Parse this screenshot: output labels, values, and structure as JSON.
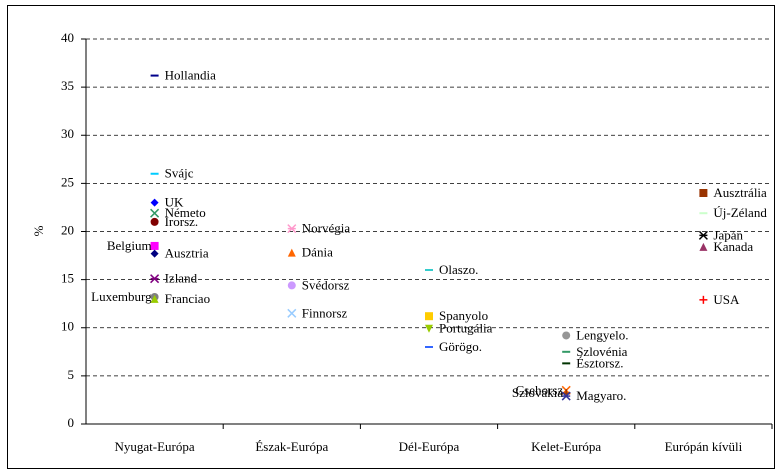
{
  "chart_data": {
    "type": "scatter",
    "y_label": "%",
    "xlim": [
      0.5,
      5.5
    ],
    "xticks": [
      {
        "value": 1,
        "label": "Nyugat-Európa"
      },
      {
        "value": 2,
        "label": "Észak-Európa"
      },
      {
        "value": 3,
        "label": "Dél-Európa"
      },
      {
        "value": 4,
        "label": "Kelet-Európa"
      },
      {
        "value": 5,
        "label": "Európán kívüli"
      }
    ],
    "ylim": [
      0,
      40
    ],
    "yticks": [
      0,
      5,
      10,
      15,
      20,
      25,
      30,
      35,
      40
    ],
    "grid": true,
    "series": [
      {
        "name": "Hollandia",
        "color": "#00008b",
        "marker": "dash",
        "x": [
          1
        ],
        "values": [
          36.2
        ]
      },
      {
        "name": "Svájc",
        "color": "#00ccff",
        "marker": "dash",
        "x": [
          1
        ],
        "values": [
          26.0
        ]
      },
      {
        "name": "UK",
        "color": "#0000ff",
        "marker": "diamond",
        "x": [
          1
        ],
        "values": [
          23.0
        ]
      },
      {
        "name": "Németo",
        "color": "#339966",
        "marker": "x",
        "x": [
          1
        ],
        "values": [
          21.9
        ]
      },
      {
        "name": "Irorsz.",
        "color": "#800000",
        "marker": "circle",
        "x": [
          1
        ],
        "values": [
          21.0
        ]
      },
      {
        "name": "Belgium",
        "color": "#ff00ff",
        "marker": "square",
        "x": [
          1
        ],
        "values": [
          18.5
        ]
      },
      {
        "name": "Ausztria",
        "color": "#000080",
        "marker": "diamond",
        "x": [
          1
        ],
        "values": [
          17.7
        ]
      },
      {
        "name": "Izland",
        "color": "#800080",
        "marker": "star",
        "x": [
          1
        ],
        "values": [
          15.1
        ]
      },
      {
        "name": "Luxemburg",
        "color": "#808080",
        "marker": "circle",
        "x": [
          1
        ],
        "values": [
          13.2
        ]
      },
      {
        "name": "Franciao",
        "color": "#99cc00",
        "marker": "triangle",
        "x": [
          1
        ],
        "values": [
          13.0
        ]
      },
      {
        "name": "Norvégia",
        "color": "#ff99cc",
        "marker": "star",
        "x": [
          2
        ],
        "values": [
          20.3
        ]
      },
      {
        "name": "Dánia",
        "color": "#ff6600",
        "marker": "triangle",
        "x": [
          2
        ],
        "values": [
          17.8
        ]
      },
      {
        "name": "Svédorsz",
        "color": "#cc99ff",
        "marker": "circle",
        "x": [
          2
        ],
        "values": [
          14.4
        ]
      },
      {
        "name": "Finnorsz",
        "color": "#99ccff",
        "marker": "x",
        "x": [
          2
        ],
        "values": [
          11.5
        ]
      },
      {
        "name": "Olaszo.",
        "color": "#33cccc",
        "marker": "dash",
        "x": [
          3
        ],
        "values": [
          16.0
        ]
      },
      {
        "name": "Spanyolo",
        "color": "#ffcc00",
        "marker": "square",
        "x": [
          3
        ],
        "values": [
          11.2
        ]
      },
      {
        "name": "Portugália",
        "color": "#99cc00",
        "marker": "triangle-down",
        "x": [
          3
        ],
        "values": [
          9.9
        ]
      },
      {
        "name": "Görögo.",
        "color": "#3366ff",
        "marker": "dash",
        "x": [
          3
        ],
        "values": [
          8.0
        ]
      },
      {
        "name": "Lengyelo.",
        "color": "#969696",
        "marker": "circle",
        "x": [
          4
        ],
        "values": [
          9.2
        ]
      },
      {
        "name": "Szlovénia",
        "color": "#339966",
        "marker": "dash",
        "x": [
          4
        ],
        "values": [
          7.5
        ]
      },
      {
        "name": "Észtorsz.",
        "color": "#003300",
        "marker": "dash",
        "x": [
          4
        ],
        "values": [
          6.3
        ]
      },
      {
        "name": "Csehorsz",
        "color": "#ff6600",
        "marker": "x",
        "x": [
          4
        ],
        "values": [
          3.5
        ]
      },
      {
        "name": "Szlovákia",
        "color": "#993300",
        "marker": "plus",
        "x": [
          4
        ],
        "values": [
          3.2
        ]
      },
      {
        "name": "Magyaro.",
        "color": "#333399",
        "marker": "star",
        "x": [
          4
        ],
        "values": [
          2.9
        ]
      },
      {
        "name": "Ausztrália",
        "color": "#993300",
        "marker": "square",
        "x": [
          5
        ],
        "values": [
          24.0
        ]
      },
      {
        "name": "Új-Zéland",
        "color": "#ccffcc",
        "marker": "dash",
        "x": [
          5
        ],
        "values": [
          21.9
        ]
      },
      {
        "name": "Japán",
        "color": "#000000",
        "marker": "star",
        "x": [
          5
        ],
        "values": [
          19.6
        ]
      },
      {
        "name": "Kanada",
        "color": "#993366",
        "marker": "triangle",
        "x": [
          5
        ],
        "values": [
          18.4
        ]
      },
      {
        "name": "USA",
        "color": "#ff0000",
        "marker": "plus",
        "x": [
          5
        ],
        "values": [
          12.9
        ]
      }
    ]
  }
}
